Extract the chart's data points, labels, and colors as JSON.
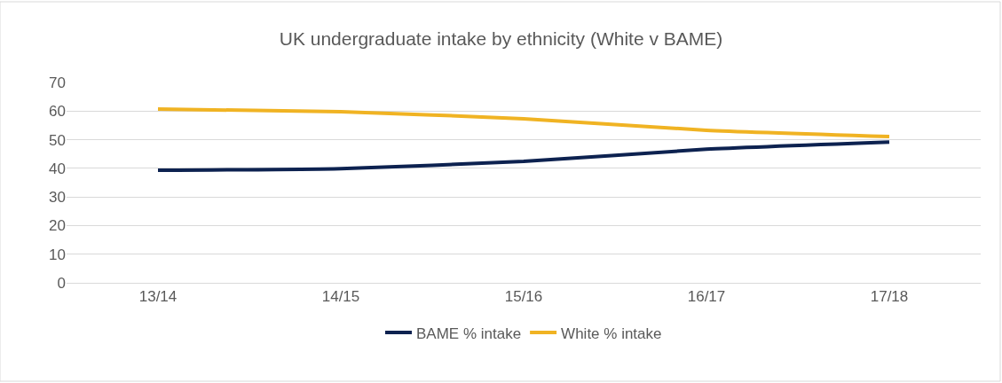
{
  "chart_data": {
    "type": "line",
    "title": "UK undergraduate intake by ethnicity (White v BAME)",
    "categories": [
      "13/14",
      "14/15",
      "15/16",
      "16/17",
      "17/18"
    ],
    "series": [
      {
        "name": "BAME % intake",
        "color": "#0d2250",
        "values": [
          39.3,
          39.9,
          42.4,
          46.7,
          49.2
        ]
      },
      {
        "name": "White % intake",
        "color": "#f0b323",
        "values": [
          60.7,
          59.8,
          57.3,
          53.3,
          51.1
        ]
      }
    ],
    "ylim": [
      0,
      70
    ],
    "yticks": [
      0,
      10,
      20,
      30,
      40,
      50,
      60,
      70
    ],
    "grid": "y",
    "legend": "bottom",
    "marker": "none",
    "line_style": "solid"
  }
}
